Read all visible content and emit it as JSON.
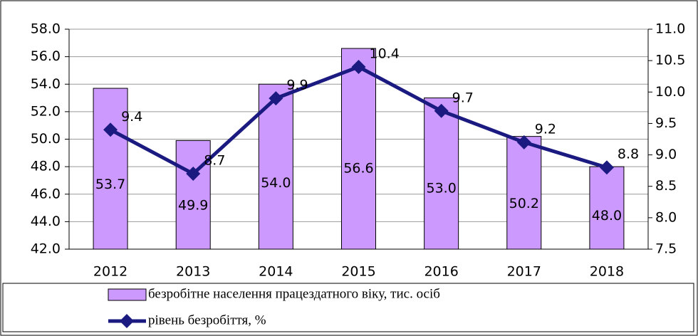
{
  "chart_data": {
    "type": "bar-line",
    "categories": [
      "2012",
      "2013",
      "2014",
      "2015",
      "2016",
      "2017",
      "2018"
    ],
    "series": [
      {
        "name": "безробітне населення працездатного віку, тис. осіб",
        "type": "bar",
        "color": "#cc99ff",
        "values": [
          53.7,
          49.9,
          54.0,
          56.6,
          53.0,
          50.2,
          48.0
        ],
        "value_labels": [
          "53.7",
          "49.9",
          "54.0",
          "56.6",
          "53.0",
          "50.2",
          "48.0"
        ]
      },
      {
        "name": "рівень безробіття, %",
        "type": "line",
        "color": "#1a1a80",
        "axis": "y2",
        "values": [
          9.4,
          8.7,
          9.9,
          10.4,
          9.7,
          9.2,
          8.8
        ]
      }
    ],
    "ylim": [
      42,
      58
    ],
    "yticks": [
      {
        "value": 42,
        "label": "42.0"
      },
      {
        "value": 44,
        "label": "44.0"
      },
      {
        "value": 46,
        "label": "46.0"
      },
      {
        "value": 48,
        "label": "48.0"
      },
      {
        "value": 50,
        "label": "50.0"
      },
      {
        "value": 52,
        "label": "52.0"
      },
      {
        "value": 54,
        "label": "54.0"
      },
      {
        "value": 56,
        "label": "56.0"
      },
      {
        "value": 58,
        "label": "58.0"
      }
    ],
    "y2lim": [
      7.5,
      11
    ],
    "y2ticks": [
      7.5,
      {
        "value": 8,
        "label": "8.0"
      },
      8.5,
      {
        "value": 9,
        "label": "9.0"
      },
      9.5,
      {
        "value": 10,
        "label": "10.0"
      },
      10.5,
      {
        "value": 11,
        "label": "11.0"
      }
    ],
    "grid": true
  }
}
